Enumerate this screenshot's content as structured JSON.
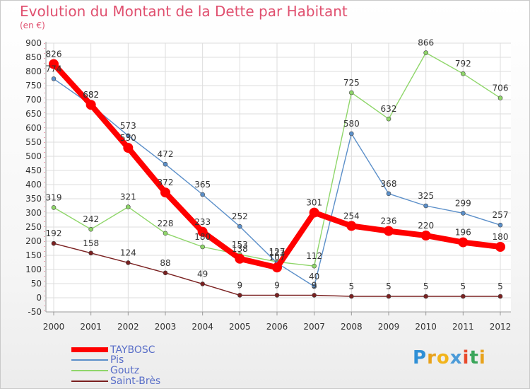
{
  "title": "Evolution du Montant de la Dette par Habitant",
  "unit": "(en €)",
  "logo": {
    "text": "Proxiti",
    "letter_colors": [
      "#2f8fd6",
      "#e8a21c",
      "#f2b41b",
      "#4c9bd8",
      "#e84a2c",
      "#3aa55a",
      "#e8a21c"
    ]
  },
  "chart_data": {
    "type": "line",
    "x": [
      "2000",
      "2001",
      "2002",
      "2003",
      "2004",
      "2005",
      "2006",
      "2007",
      "2008",
      "2009",
      "2010",
      "2011",
      "2012"
    ],
    "ylim": [
      -50,
      900
    ],
    "yticks": [
      -50,
      0,
      50,
      100,
      150,
      200,
      250,
      300,
      350,
      400,
      450,
      500,
      550,
      600,
      650,
      700,
      750,
      800,
      850,
      900
    ],
    "grid": true,
    "legend_position": "bottom-left",
    "series": [
      {
        "name": "TAYBOSC",
        "color": "#ff0000",
        "values": [
          826,
          682,
          530,
          372,
          233,
          138,
          107,
          301,
          254,
          236,
          220,
          196,
          180
        ],
        "labels": [
          "826",
          "682",
          "530",
          "372",
          "233",
          "138",
          "107",
          "301",
          "254",
          "236",
          "220",
          "196",
          "180"
        ]
      },
      {
        "name": "Pis",
        "color": "#5b8fc9",
        "values": [
          774,
          682,
          573,
          472,
          365,
          252,
          123,
          40,
          580,
          368,
          325,
          299,
          257
        ],
        "labels": [
          "774",
          "682",
          "573",
          "472",
          "365",
          "252",
          "123",
          "40",
          "580",
          "368",
          "325",
          "299",
          "257"
        ]
      },
      {
        "name": "Goutz",
        "color": "#8fd66a",
        "values": [
          319,
          242,
          321,
          228,
          180,
          153,
          127,
          112,
          725,
          632,
          866,
          792,
          706
        ],
        "labels": [
          "319",
          "242",
          "321",
          "228",
          "180",
          "153",
          "127",
          "112",
          "725",
          "632",
          "866",
          "792",
          "706"
        ]
      },
      {
        "name": "Saint-Brès",
        "color": "#7a2020",
        "values": [
          192,
          158,
          124,
          88,
          49,
          9,
          9,
          9,
          5,
          5,
          5,
          5,
          5
        ],
        "labels": [
          "192",
          "158",
          "124",
          "88",
          "49",
          "9",
          "9",
          "9",
          "5",
          "5",
          "5",
          "5",
          "5"
        ]
      }
    ]
  }
}
